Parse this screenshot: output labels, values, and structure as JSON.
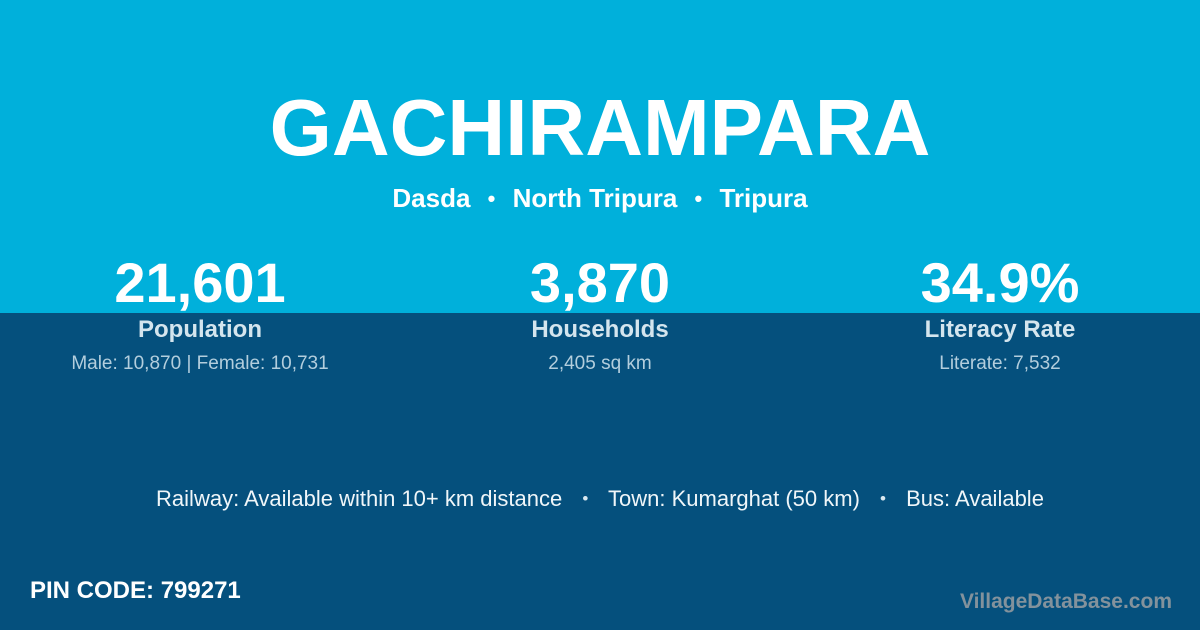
{
  "header": {
    "title": "GACHIRAMPARA",
    "breadcrumb": [
      "Dasda",
      "North Tripura",
      "Tripura"
    ],
    "separator": "•"
  },
  "stats": [
    {
      "value": "21,601",
      "label": "Population",
      "detail": "Male: 10,870 | Female: 10,731"
    },
    {
      "value": "3,870",
      "label": "Households",
      "detail": "2,405 sq km"
    },
    {
      "value": "34.9%",
      "label": "Literacy Rate",
      "detail": "Literate: 7,532"
    }
  ],
  "transport": {
    "railway": "Railway: Available within 10+ km distance",
    "town": "Town: Kumarghat (50 km)",
    "bus": "Bus: Available",
    "separator": "•"
  },
  "footer": {
    "pin_label": "PIN CODE:",
    "pin_value": "799271",
    "watermark": "VillageDataBase.com"
  },
  "colors": {
    "top_background": "#00b0db",
    "bottom_background": "#05507d",
    "primary_text": "#ffffff",
    "label_text": "#d4e5ee",
    "detail_text": "#b3cedd",
    "watermark_text": "#83929c"
  }
}
